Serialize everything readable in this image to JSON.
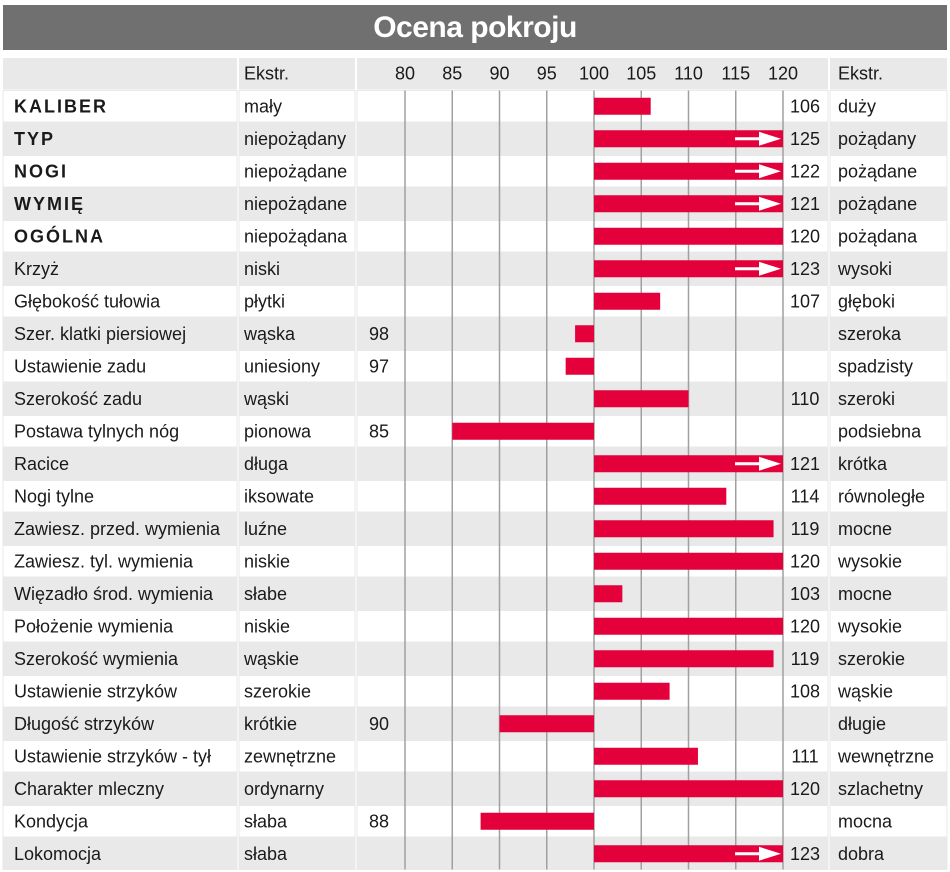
{
  "title": "Ocena pokroju",
  "header": {
    "left_extreme_label": "Ekstr.",
    "right_extreme_label": "Ekstr."
  },
  "colors": {
    "bar": "#e4003a",
    "row_light": "#e9e9e9",
    "row_white": "#ffffff",
    "header_bar": "#707070",
    "gridline": "#a0a0a0"
  },
  "chart_data": {
    "type": "bar",
    "orientation": "horizontal",
    "title": "Ocena pokroju",
    "baseline": 100,
    "xlim": [
      80,
      120
    ],
    "ticks": [
      80,
      85,
      90,
      95,
      100,
      105,
      110,
      115,
      120
    ],
    "rows": [
      {
        "name": "KALIBER",
        "bold": true,
        "low": "mały",
        "value": 106,
        "value_label": "106",
        "high": "duży",
        "arrow": false
      },
      {
        "name": "TYP",
        "bold": true,
        "low": "niepożądany",
        "value": 125,
        "value_label": "125",
        "high": "pożądany",
        "arrow": true
      },
      {
        "name": "NOGI",
        "bold": true,
        "low": "niepożądane",
        "value": 122,
        "value_label": "122",
        "high": "pożądane",
        "arrow": true
      },
      {
        "name": "WYMIĘ",
        "bold": true,
        "low": "niepożądane",
        "value": 121,
        "value_label": "121",
        "high": "pożądane",
        "arrow": true
      },
      {
        "name": "OGÓLNA",
        "bold": true,
        "low": "niepożądana",
        "value": 120,
        "value_label": "120",
        "high": "pożądana",
        "arrow": false
      },
      {
        "name": "Krzyż",
        "bold": false,
        "low": "niski",
        "value": 123,
        "value_label": "123",
        "high": "wysoki",
        "arrow": true
      },
      {
        "name": "Głębokość tułowia",
        "bold": false,
        "low": "płytki",
        "value": 107,
        "value_label": "107",
        "high": "głęboki",
        "arrow": false
      },
      {
        "name": "Szer. klatki piersiowej",
        "bold": false,
        "low": "wąska",
        "value": 98,
        "value_label": "98",
        "high": "szeroka",
        "arrow": false
      },
      {
        "name": "Ustawienie zadu",
        "bold": false,
        "low": "uniesiony",
        "value": 97,
        "value_label": "97",
        "high": "spadzisty",
        "arrow": false
      },
      {
        "name": "Szerokość zadu",
        "bold": false,
        "low": "wąski",
        "value": 110,
        "value_label": "110",
        "high": "szeroki",
        "arrow": false
      },
      {
        "name": "Postawa tylnych nóg",
        "bold": false,
        "low": "pionowa",
        "value": 85,
        "value_label": "85",
        "high": "podsiebna",
        "arrow": false
      },
      {
        "name": "Racice",
        "bold": false,
        "low": "długa",
        "value": 121,
        "value_label": "121",
        "high": "krótka",
        "arrow": true
      },
      {
        "name": "Nogi tylne",
        "bold": false,
        "low": "iksowate",
        "value": 114,
        "value_label": "114",
        "high": "równoległe",
        "arrow": false
      },
      {
        "name": "Zawiesz. przed. wymienia",
        "bold": false,
        "low": "luźne",
        "value": 119,
        "value_label": "119",
        "high": "mocne",
        "arrow": false
      },
      {
        "name": "Zawiesz. tyl. wymienia",
        "bold": false,
        "low": "niskie",
        "value": 120,
        "value_label": "120",
        "high": "wysokie",
        "arrow": false
      },
      {
        "name": "Więzadło środ. wymienia",
        "bold": false,
        "low": "słabe",
        "value": 103,
        "value_label": "103",
        "high": "mocne",
        "arrow": false
      },
      {
        "name": "Położenie wymienia",
        "bold": false,
        "low": "niskie",
        "value": 120,
        "value_label": "120",
        "high": "wysokie",
        "arrow": false
      },
      {
        "name": "Szerokość wymienia",
        "bold": false,
        "low": "wąskie",
        "value": 119,
        "value_label": "119",
        "high": "szerokie",
        "arrow": false
      },
      {
        "name": "Ustawienie strzyków",
        "bold": false,
        "low": "szerokie",
        "value": 108,
        "value_label": "108",
        "high": "wąskie",
        "arrow": false
      },
      {
        "name": "Długość strzyków",
        "bold": false,
        "low": "krótkie",
        "value": 90,
        "value_label": "90",
        "high": "długie",
        "arrow": false
      },
      {
        "name": "Ustawienie strzyków - tył",
        "bold": false,
        "low": "zewnętrzne",
        "value": 111,
        "value_label": "111",
        "high": "wewnętrzne",
        "arrow": false
      },
      {
        "name": "Charakter mleczny",
        "bold": false,
        "low": "ordynarny",
        "value": 120,
        "value_label": "120",
        "high": "szlachetny",
        "arrow": false
      },
      {
        "name": "Kondycja",
        "bold": false,
        "low": "słaba",
        "value": 88,
        "value_label": "88",
        "high": "mocna",
        "arrow": false
      },
      {
        "name": "Lokomocja",
        "bold": false,
        "low": "słaba",
        "value": 123,
        "value_label": "123",
        "high": "dobra",
        "arrow": true
      }
    ]
  }
}
